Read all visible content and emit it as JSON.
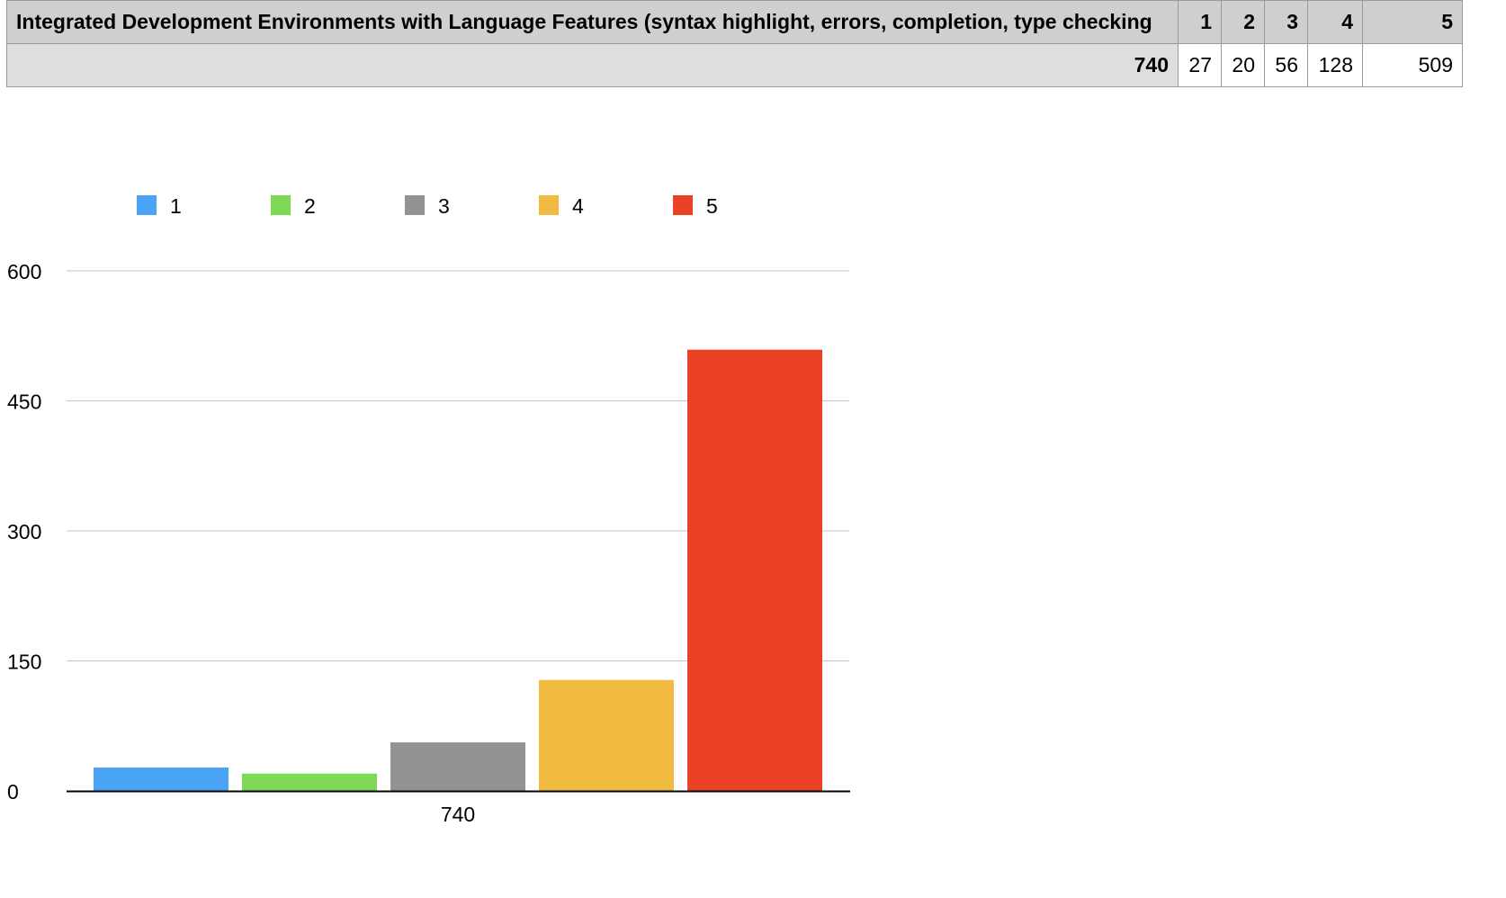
{
  "table": {
    "title": "Integrated Development Environments with Language Features (syntax highlight, errors, completion, type checking",
    "column_headers": [
      "1",
      "2",
      "3",
      "4",
      "5"
    ],
    "row": {
      "label": "740",
      "values": [
        "27",
        "20",
        "56",
        "128",
        "509"
      ]
    }
  },
  "chart_data": {
    "type": "bar",
    "categories": [
      "740"
    ],
    "series": [
      {
        "name": "1",
        "values": [
          27
        ],
        "color": "#4aa3f5"
      },
      {
        "name": "2",
        "values": [
          20
        ],
        "color": "#7ed957"
      },
      {
        "name": "3",
        "values": [
          56
        ],
        "color": "#939393"
      },
      {
        "name": "4",
        "values": [
          128
        ],
        "color": "#f0bb40"
      },
      {
        "name": "5",
        "values": [
          509
        ],
        "color": "#eb4127"
      }
    ],
    "ylim": [
      0,
      600
    ],
    "yticks": [
      0,
      150,
      300,
      450,
      600
    ],
    "grid": true,
    "legend": "top-left",
    "title": "",
    "xlabel": "",
    "ylabel": ""
  }
}
